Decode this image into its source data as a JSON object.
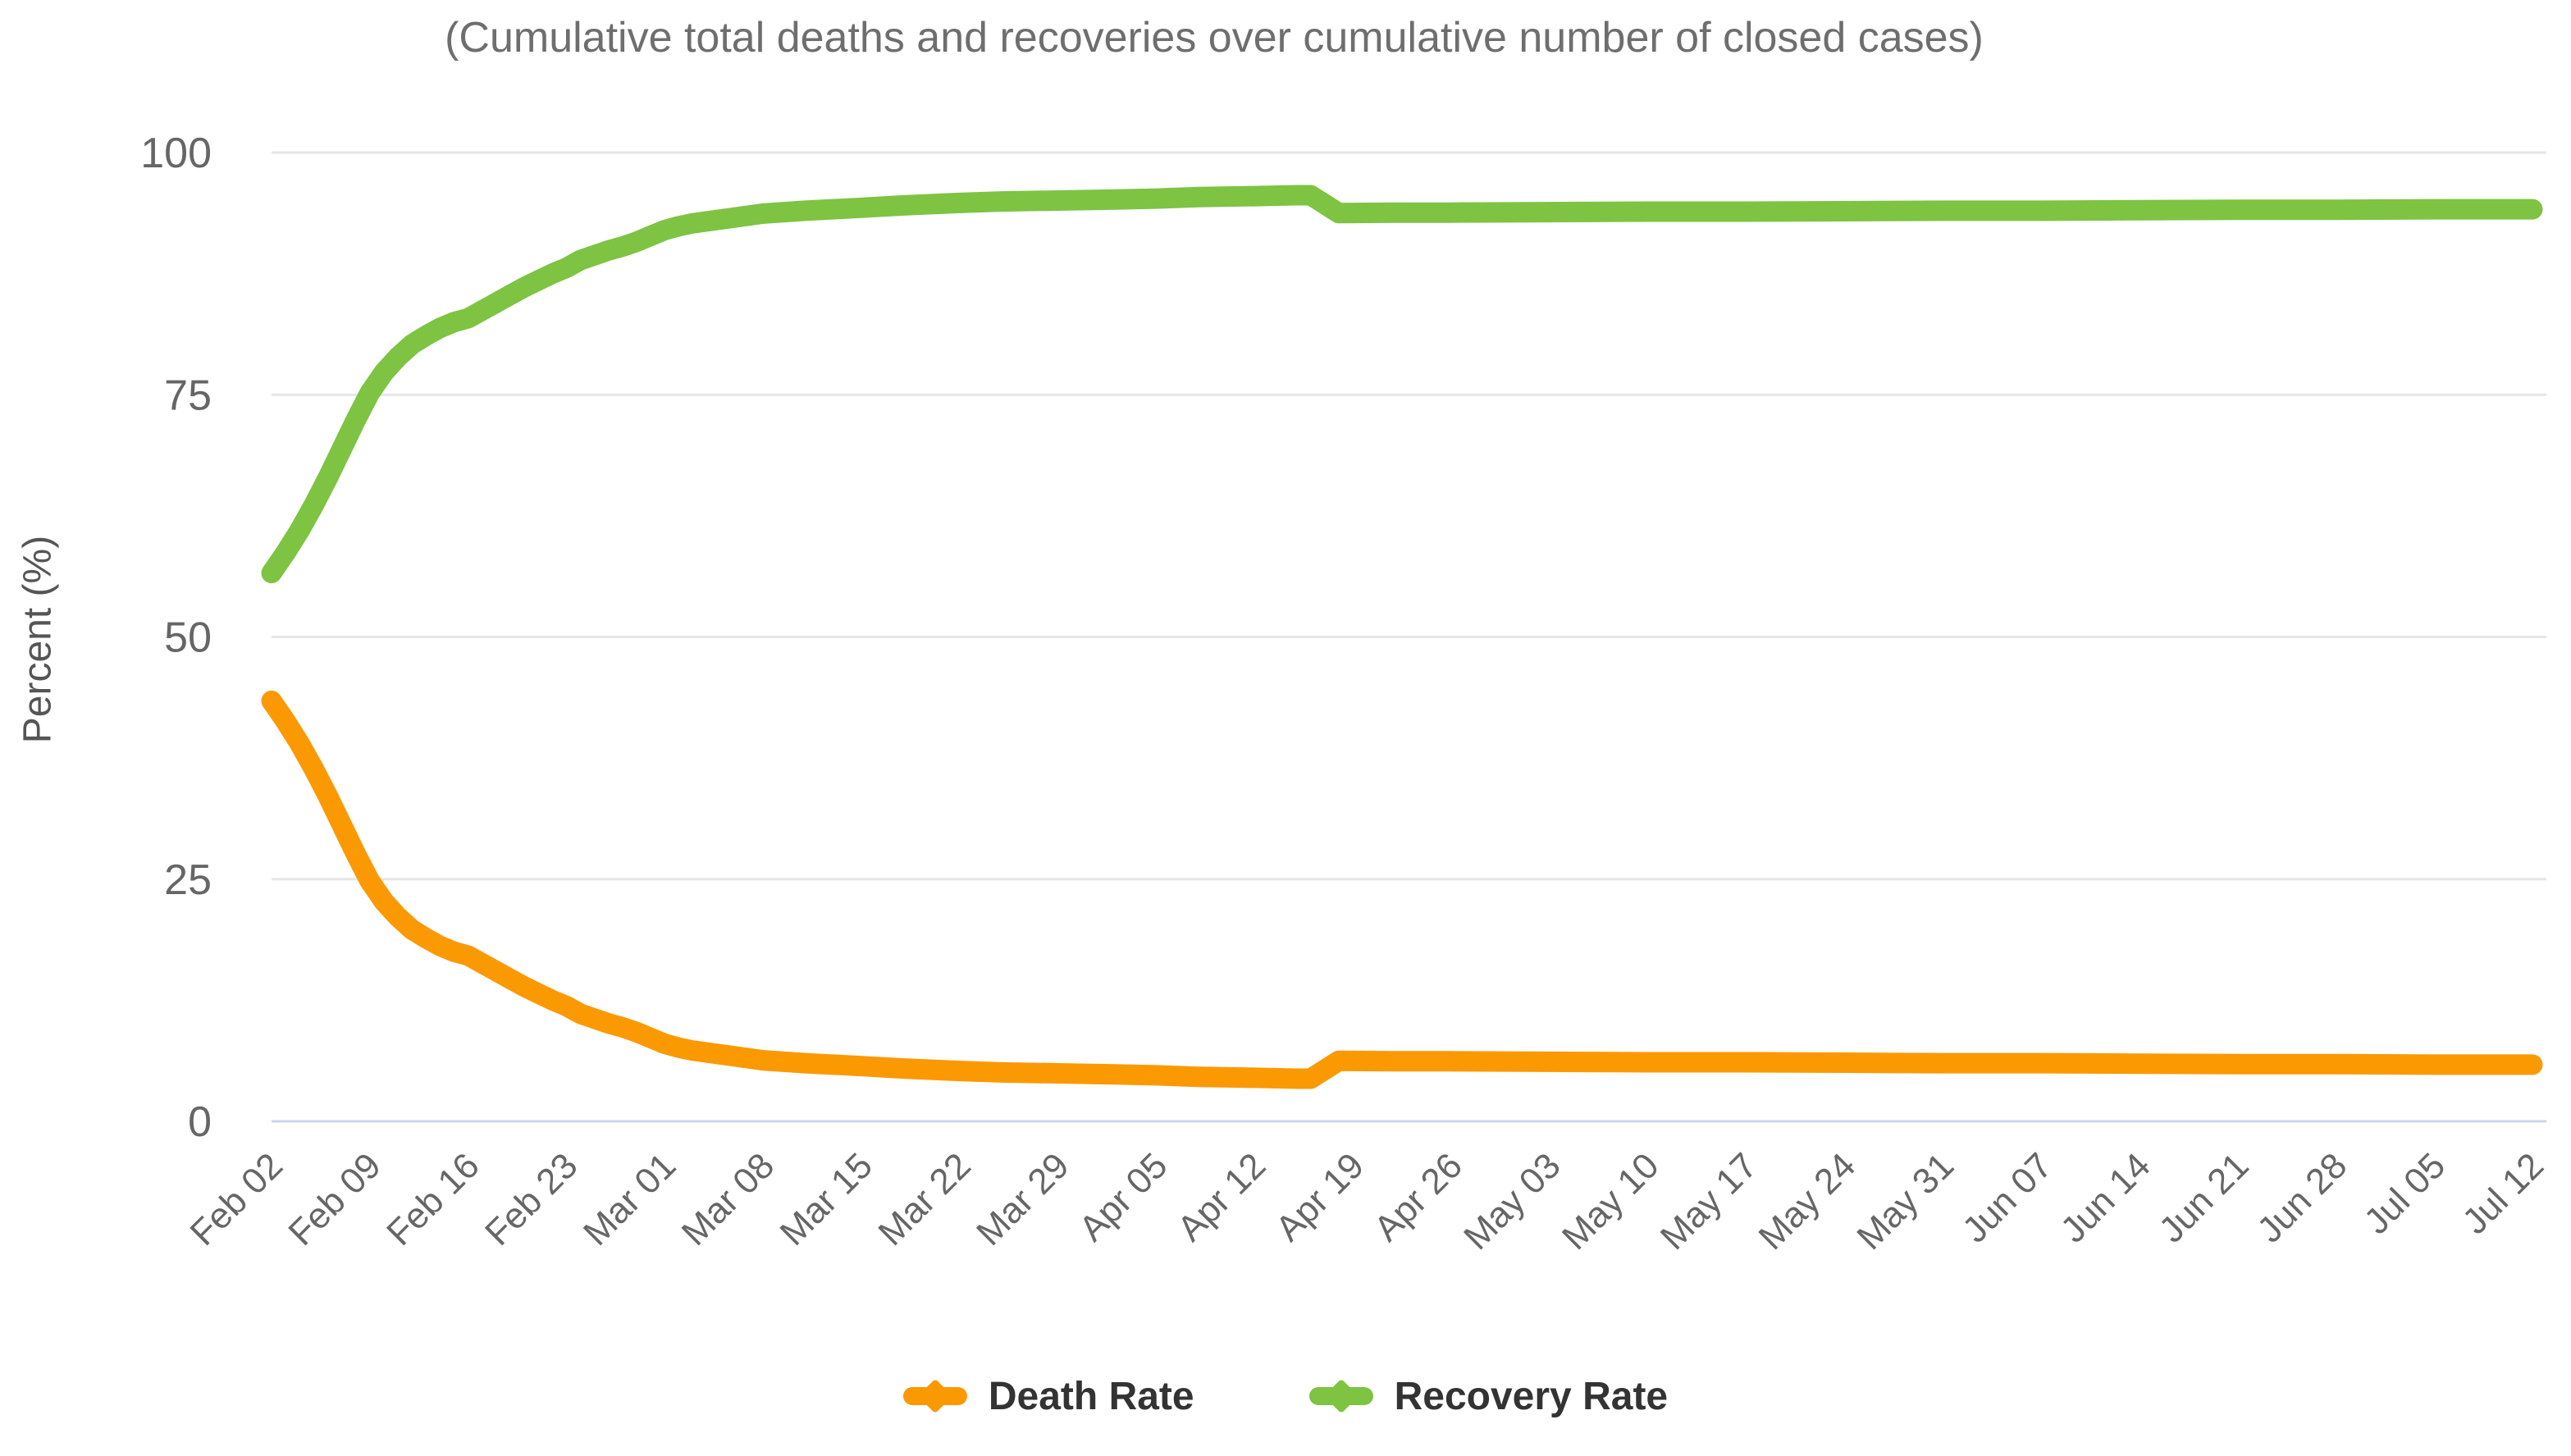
{
  "colors": {
    "grid_line": "#E6E6E6",
    "axis_line": "#CCD6EB",
    "tick_text": "#666666",
    "title_text": "#6E6E6E",
    "legend_text": "#333333",
    "death": "#FB9902",
    "recovery": "#7EC342"
  },
  "chart_data": {
    "type": "line",
    "title": "(Cumulative total deaths and recoveries over cumulative number of closed cases)",
    "xlabel": "",
    "ylabel": "Percent (%)",
    "ylim": [
      0,
      100
    ],
    "y_ticks": [
      0,
      25,
      50,
      75,
      100
    ],
    "grid": true,
    "legend_position": "bottom",
    "x_tick_labels": [
      {
        "label": "Feb 02",
        "day": 0
      },
      {
        "label": "Feb 09",
        "day": 7
      },
      {
        "label": "Feb 16",
        "day": 14
      },
      {
        "label": "Feb 23",
        "day": 21
      },
      {
        "label": "Mar 01",
        "day": 28
      },
      {
        "label": "Mar 08",
        "day": 35
      },
      {
        "label": "Mar 15",
        "day": 42
      },
      {
        "label": "Mar 22",
        "day": 49
      },
      {
        "label": "Mar 29",
        "day": 56
      },
      {
        "label": "Apr 05",
        "day": 63
      },
      {
        "label": "Apr 12",
        "day": 70
      },
      {
        "label": "Apr 19",
        "day": 77
      },
      {
        "label": "Apr 26",
        "day": 84
      },
      {
        "label": "May 03",
        "day": 91
      },
      {
        "label": "May 10",
        "day": 98
      },
      {
        "label": "May 17",
        "day": 105
      },
      {
        "label": "May 24",
        "day": 112
      },
      {
        "label": "May 31",
        "day": 119
      },
      {
        "label": "Jun 07",
        "day": 126
      },
      {
        "label": "Jun 14",
        "day": 133
      },
      {
        "label": "Jun 21",
        "day": 140
      },
      {
        "label": "Jun 28",
        "day": 147
      },
      {
        "label": "Jul 05",
        "day": 154
      },
      {
        "label": "Jul 12",
        "day": 161
      }
    ],
    "series": [
      {
        "name": "Death Rate",
        "color": "#FB9902",
        "points": [
          [
            0,
            43.4
          ],
          [
            1,
            41.3
          ],
          [
            2,
            39.0
          ],
          [
            3,
            36.4
          ],
          [
            4,
            33.6
          ],
          [
            5,
            30.6
          ],
          [
            6,
            27.6
          ],
          [
            7,
            24.8
          ],
          [
            8,
            22.7
          ],
          [
            9,
            21.1
          ],
          [
            10,
            19.8
          ],
          [
            11,
            18.9
          ],
          [
            12,
            18.1
          ],
          [
            13,
            17.5
          ],
          [
            14,
            17.1
          ],
          [
            15,
            16.3
          ],
          [
            16,
            15.5
          ],
          [
            17,
            14.7
          ],
          [
            18,
            13.9
          ],
          [
            19,
            13.2
          ],
          [
            20,
            12.5
          ],
          [
            21,
            11.9
          ],
          [
            22,
            11.1
          ],
          [
            23,
            10.6
          ],
          [
            24,
            10.1
          ],
          [
            25,
            9.7
          ],
          [
            26,
            9.2
          ],
          [
            27,
            8.6
          ],
          [
            28,
            8.0
          ],
          [
            29,
            7.6
          ],
          [
            30,
            7.3
          ],
          [
            32,
            6.9
          ],
          [
            35,
            6.3
          ],
          [
            38,
            6.0
          ],
          [
            42,
            5.7
          ],
          [
            45,
            5.45
          ],
          [
            49,
            5.2
          ],
          [
            52,
            5.05
          ],
          [
            56,
            4.95
          ],
          [
            60,
            4.85
          ],
          [
            63,
            4.75
          ],
          [
            66,
            4.6
          ],
          [
            70,
            4.5
          ],
          [
            73,
            4.4
          ],
          [
            74,
            4.4
          ],
          [
            76,
            6.25
          ],
          [
            80,
            6.2
          ],
          [
            84,
            6.2
          ],
          [
            91,
            6.15
          ],
          [
            98,
            6.1
          ],
          [
            105,
            6.1
          ],
          [
            112,
            6.05
          ],
          [
            119,
            6.0
          ],
          [
            126,
            6.0
          ],
          [
            133,
            5.95
          ],
          [
            140,
            5.9
          ],
          [
            147,
            5.9
          ],
          [
            154,
            5.85
          ],
          [
            161,
            5.85
          ]
        ]
      },
      {
        "name": "Recovery Rate",
        "color": "#7EC342",
        "points": [
          [
            0,
            56.6
          ],
          [
            1,
            58.7
          ],
          [
            2,
            61.0
          ],
          [
            3,
            63.6
          ],
          [
            4,
            66.4
          ],
          [
            5,
            69.4
          ],
          [
            6,
            72.4
          ],
          [
            7,
            75.2
          ],
          [
            8,
            77.3
          ],
          [
            9,
            78.9
          ],
          [
            10,
            80.2
          ],
          [
            11,
            81.1
          ],
          [
            12,
            81.9
          ],
          [
            13,
            82.5
          ],
          [
            14,
            82.9
          ],
          [
            15,
            83.7
          ],
          [
            16,
            84.5
          ],
          [
            17,
            85.3
          ],
          [
            18,
            86.1
          ],
          [
            19,
            86.8
          ],
          [
            20,
            87.5
          ],
          [
            21,
            88.1
          ],
          [
            22,
            88.9
          ],
          [
            23,
            89.4
          ],
          [
            24,
            89.9
          ],
          [
            25,
            90.3
          ],
          [
            26,
            90.8
          ],
          [
            27,
            91.4
          ],
          [
            28,
            92.0
          ],
          [
            29,
            92.4
          ],
          [
            30,
            92.7
          ],
          [
            32,
            93.1
          ],
          [
            35,
            93.7
          ],
          [
            38,
            94.0
          ],
          [
            42,
            94.3
          ],
          [
            45,
            94.55
          ],
          [
            49,
            94.8
          ],
          [
            52,
            94.95
          ],
          [
            56,
            95.05
          ],
          [
            60,
            95.15
          ],
          [
            63,
            95.25
          ],
          [
            66,
            95.4
          ],
          [
            70,
            95.5
          ],
          [
            73,
            95.6
          ],
          [
            74,
            95.6
          ],
          [
            76,
            93.75
          ],
          [
            80,
            93.8
          ],
          [
            84,
            93.8
          ],
          [
            91,
            93.85
          ],
          [
            98,
            93.9
          ],
          [
            105,
            93.9
          ],
          [
            112,
            93.95
          ],
          [
            119,
            94.0
          ],
          [
            126,
            94.0
          ],
          [
            133,
            94.05
          ],
          [
            140,
            94.1
          ],
          [
            147,
            94.1
          ],
          [
            154,
            94.15
          ],
          [
            161,
            94.15
          ]
        ]
      }
    ]
  }
}
